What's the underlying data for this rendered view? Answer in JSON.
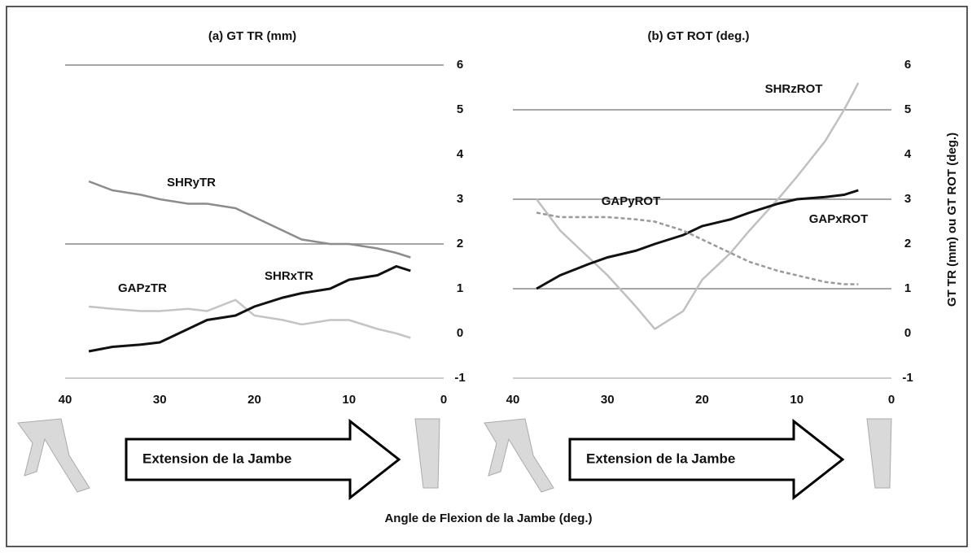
{
  "figure": {
    "xlabel": "Angle de Flexion de la Jambe (deg.)",
    "ylabel": "GT TR (mm) ou GT ROT (deg.)"
  },
  "chart_data": [
    {
      "type": "line",
      "title": "(a) GT TR (mm)",
      "annotation": "Extension de la Jambe",
      "x": [
        37.5,
        35,
        32,
        30,
        27,
        25,
        22,
        20,
        17,
        15,
        12,
        10,
        7,
        5,
        3.5
      ],
      "xlim": [
        40,
        0
      ],
      "xticks": [
        40,
        30,
        20,
        10,
        0
      ],
      "ylim": [
        -1,
        6
      ],
      "yticks": [
        -1,
        0,
        1,
        2,
        3,
        4,
        5,
        6
      ],
      "grid": [
        6,
        2
      ],
      "series": [
        {
          "name": "SHRyTR",
          "color": "#8c8c8c",
          "values": [
            3.4,
            3.2,
            3.1,
            3.0,
            2.9,
            2.9,
            2.8,
            2.6,
            2.3,
            2.1,
            2.0,
            2.0,
            1.9,
            1.8,
            1.7
          ]
        },
        {
          "name": "GAPzTR",
          "color": "#c4c4c4",
          "values": [
            0.6,
            0.55,
            0.5,
            0.5,
            0.55,
            0.5,
            0.75,
            0.4,
            0.3,
            0.2,
            0.3,
            0.3,
            0.1,
            0.0,
            -0.1
          ]
        },
        {
          "name": "SHRxTR",
          "color": "#111111",
          "values": [
            -0.4,
            -0.3,
            -0.25,
            -0.2,
            0.1,
            0.3,
            0.4,
            0.6,
            0.8,
            0.9,
            1.0,
            1.2,
            1.3,
            1.5,
            1.4
          ]
        }
      ]
    },
    {
      "type": "line",
      "title": "(b) GT ROT (deg.)",
      "annotation": "Extension de la Jambe",
      "x": [
        37.5,
        35,
        32,
        30,
        27,
        25,
        22,
        20,
        17,
        15,
        12,
        10,
        7,
        5,
        3.5
      ],
      "xlim": [
        40,
        0
      ],
      "xticks": [
        40,
        30,
        20,
        10,
        0
      ],
      "ylim": [
        -1,
        6
      ],
      "yticks": [
        -1,
        0,
        1,
        2,
        3,
        4,
        5,
        6
      ],
      "grid": [
        5,
        3,
        1
      ],
      "series": [
        {
          "name": "SHRzROT",
          "color": "#c0c0c0",
          "values": [
            3.0,
            2.3,
            1.7,
            1.3,
            0.6,
            0.1,
            0.5,
            1.2,
            1.8,
            2.3,
            3.0,
            3.5,
            4.3,
            5.0,
            5.6
          ]
        },
        {
          "name": "GAPxROT",
          "color": "#111111",
          "values": [
            1.0,
            1.3,
            1.55,
            1.7,
            1.85,
            2.0,
            2.2,
            2.4,
            2.55,
            2.7,
            2.9,
            3.0,
            3.05,
            3.1,
            3.2
          ]
        },
        {
          "name": "GAPyROT",
          "color": "#9a9a9a",
          "dash": true,
          "values": [
            2.7,
            2.6,
            2.6,
            2.6,
            2.55,
            2.5,
            2.3,
            2.1,
            1.8,
            1.6,
            1.4,
            1.3,
            1.15,
            1.1,
            1.1
          ]
        }
      ]
    }
  ]
}
